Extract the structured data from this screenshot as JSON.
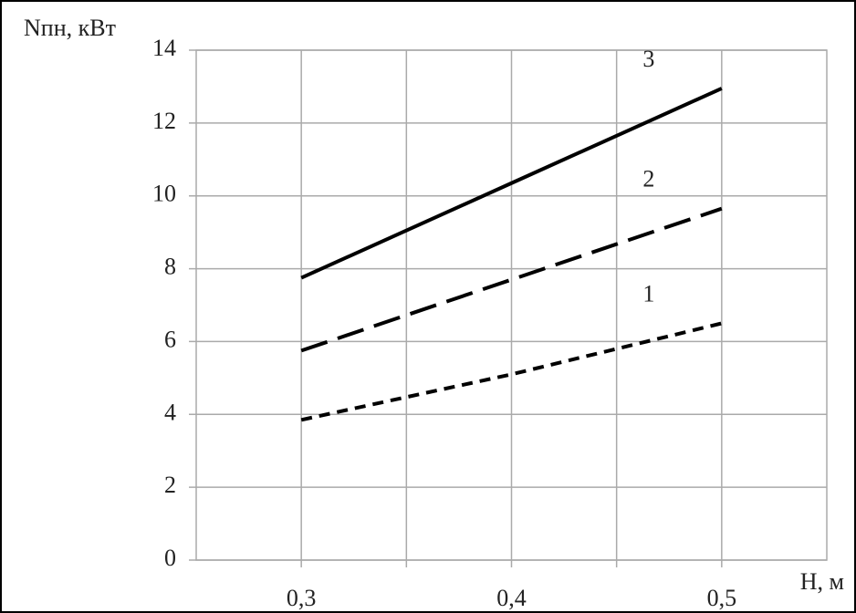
{
  "chart_data": {
    "type": "line",
    "ylabel": "Nпн, кВт",
    "xlabel": "H, м",
    "x": [
      0.3,
      0.4,
      0.5
    ],
    "series": [
      {
        "name": "1",
        "color": "#000000",
        "dash": "short",
        "values": [
          3.85,
          5.1,
          6.5
        ]
      },
      {
        "name": "2",
        "color": "#000000",
        "dash": "long",
        "values": [
          5.75,
          7.7,
          9.65
        ]
      },
      {
        "name": "3",
        "color": "#000000",
        "dash": "solid",
        "values": [
          7.75,
          10.35,
          12.95
        ]
      }
    ],
    "xlim": [
      0.25,
      0.55
    ],
    "xticks": [
      {
        "value": 0.3,
        "label": "0,3"
      },
      {
        "value": 0.35,
        "label": null
      },
      {
        "value": 0.4,
        "label": "0,4"
      },
      {
        "value": 0.45,
        "label": null
      },
      {
        "value": 0.5,
        "label": "0,5"
      }
    ],
    "ylim": [
      0,
      14
    ],
    "yticks": [
      0,
      2,
      4,
      6,
      8,
      10,
      12,
      14
    ],
    "grid": true
  }
}
